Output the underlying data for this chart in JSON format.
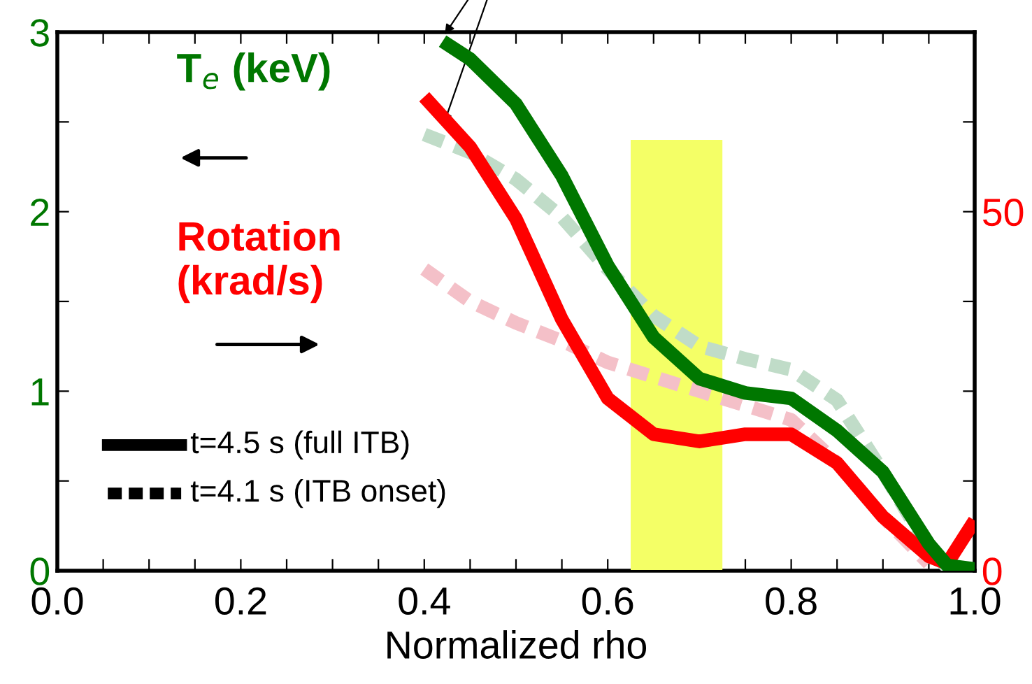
{
  "chart_data": {
    "type": "line",
    "xlabel": "Normalized rho",
    "xlim": [
      0.0,
      1.0
    ],
    "xticks": [
      {
        "value": 0.0,
        "label": "0.0"
      },
      {
        "value": 0.05,
        "label": null
      },
      {
        "value": 0.1,
        "label": null
      },
      {
        "value": 0.15,
        "label": null
      },
      0.2,
      {
        "value": 0.25,
        "label": null
      },
      {
        "value": 0.3,
        "label": null
      },
      {
        "value": 0.35,
        "label": null
      },
      0.4,
      {
        "value": 0.45,
        "label": null
      },
      {
        "value": 0.5,
        "label": null
      },
      {
        "value": 0.55,
        "label": null
      },
      0.6,
      {
        "value": 0.65,
        "label": null
      },
      {
        "value": 0.7,
        "label": null
      },
      {
        "value": 0.75,
        "label": null
      },
      0.8,
      {
        "value": 0.85,
        "label": null
      },
      {
        "value": 0.9,
        "label": null
      },
      {
        "value": 0.95,
        "label": null
      },
      {
        "value": 1.0,
        "label": "1.0"
      }
    ],
    "ylim": [
      0,
      3
    ],
    "yticks": [
      0,
      {
        "value": 0.5,
        "label": null
      },
      1,
      {
        "value": 1.5,
        "label": null
      },
      2,
      {
        "value": 2.5,
        "label": null
      },
      3
    ],
    "y2lim": [
      0,
      75
    ],
    "y2ticks": [
      0,
      {
        "value": 12.5,
        "label": null
      },
      {
        "value": 25,
        "label": null
      },
      {
        "value": 37.5,
        "label": null
      },
      50,
      {
        "value": 62.5,
        "label": null
      },
      {
        "value": 75,
        "label": null
      }
    ],
    "grid": false,
    "legend": false,
    "marker": "none",
    "series": [
      {
        "type": "area",
        "color": "#f4ff66",
        "x": [
          0.625,
          0.725
        ],
        "values": [
          2.4,
          2.4
        ]
      },
      {
        "color": "#c0dcc8",
        "line_style": "dashed",
        "x": [
          0.4,
          0.45,
          0.5,
          0.55,
          0.6,
          0.65,
          0.7,
          0.75,
          0.8,
          0.85,
          0.9,
          0.95,
          0.97
        ],
        "values": [
          2.43,
          2.33,
          2.18,
          1.97,
          1.68,
          1.42,
          1.25,
          1.18,
          1.12,
          0.95,
          0.55,
          0.12,
          0.02
        ]
      },
      {
        "color": "#f4c0c8",
        "line_style": "dashed",
        "axis": "y2",
        "x": [
          0.4,
          0.45,
          0.5,
          0.55,
          0.6,
          0.65,
          0.7,
          0.75,
          0.8,
          0.85,
          0.9,
          0.95
        ],
        "values": [
          42,
          37.5,
          34.5,
          32,
          29,
          27,
          25,
          23,
          21,
          15,
          7.5,
          1
        ]
      },
      {
        "color": "#ff0000",
        "line_style": "solid",
        "axis": "y2",
        "x": [
          0.4,
          0.45,
          0.5,
          0.55,
          0.6,
          0.65,
          0.7,
          0.75,
          0.8,
          0.85,
          0.9,
          0.95,
          0.97,
          1.0
        ],
        "values": [
          66,
          59,
          49,
          35,
          24,
          19,
          18,
          19,
          19,
          15,
          7.5,
          2,
          1,
          7
        ]
      },
      {
        "color": "#007700",
        "line_style": "solid",
        "x": [
          0.42,
          0.45,
          0.5,
          0.55,
          0.6,
          0.65,
          0.7,
          0.75,
          0.8,
          0.85,
          0.9,
          0.95,
          0.97,
          1.0
        ],
        "values": [
          2.95,
          2.85,
          2.6,
          2.2,
          1.7,
          1.3,
          1.07,
          0.99,
          0.96,
          0.78,
          0.55,
          0.15,
          0.03,
          0.01
        ]
      }
    ],
    "annotations": [
      "T$_{e}$ (keV)",
      "Rotation\n(krad/s)",
      "t=4.5 s (full ITB)",
      "t=4.1 s (ITB onset)"
    ]
  }
}
